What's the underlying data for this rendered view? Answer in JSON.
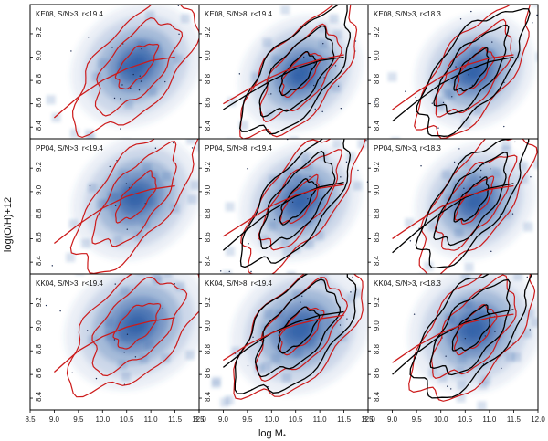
{
  "chart_data": {
    "type": "scatter",
    "layout": "3x3 grid of density plots with contours",
    "xlabel": "log M",
    "xlabel_sub": "*",
    "ylabel": "log(O/H)+12",
    "xlim": [
      8.5,
      12.0
    ],
    "ylim": [
      8.3,
      9.45
    ],
    "xticks": [
      "8.5",
      "9.0",
      "9.5",
      "10.0",
      "10.5",
      "11.0",
      "11.5",
      "12.0"
    ],
    "yticks": [
      "8.4",
      "8.6",
      "8.8",
      "9.0",
      "9.2"
    ],
    "colors": {
      "density": "#2f5fa8",
      "red": "#cc1a1a",
      "black": "#000000",
      "frame": "#000000"
    },
    "panels": [
      {
        "title": "KE08, S/N>3, r<19.4",
        "calibration": "KE08",
        "centroid": [
          10.7,
          8.93
        ],
        "spread": [
          0.55,
          0.19
        ],
        "tilt": 0.3,
        "black_contours": false,
        "red_fit": {
          "x": [
            9.0,
            9.5,
            10.0,
            10.5,
            11.0,
            11.5
          ],
          "y": [
            8.48,
            8.66,
            8.8,
            8.9,
            8.97,
            9.0
          ]
        }
      },
      {
        "title": "KE08, S/N>8, r<19.4",
        "calibration": "KE08",
        "centroid": [
          10.6,
          8.86
        ],
        "spread": [
          0.52,
          0.18
        ],
        "tilt": 0.32,
        "black_contours": true,
        "red_fit": {
          "x": [
            9.0,
            9.5,
            10.0,
            10.5,
            11.0,
            11.5
          ],
          "y": [
            8.6,
            8.72,
            8.83,
            8.92,
            8.98,
            9.02
          ]
        },
        "black_fit": {
          "x": [
            9.0,
            9.5,
            10.0,
            10.5,
            11.0,
            11.5
          ],
          "y": [
            8.55,
            8.68,
            8.8,
            8.9,
            8.97,
            9.0
          ]
        }
      },
      {
        "title": "KE08, S/N>3, r<18.3",
        "calibration": "KE08",
        "centroid": [
          10.7,
          8.88
        ],
        "spread": [
          0.5,
          0.18
        ],
        "tilt": 0.34,
        "black_contours": true,
        "red_fit": {
          "x": [
            9.0,
            9.5,
            10.0,
            10.5,
            11.0,
            11.5
          ],
          "y": [
            8.55,
            8.7,
            8.83,
            8.93,
            8.99,
            9.02
          ]
        },
        "black_fit": {
          "x": [
            9.0,
            9.5,
            10.0,
            10.5,
            11.0,
            11.5
          ],
          "y": [
            8.45,
            8.62,
            8.77,
            8.88,
            8.96,
            9.0
          ]
        }
      },
      {
        "title": "PP04, S/N>3, r<19.4",
        "calibration": "PP04",
        "centroid": [
          10.7,
          8.95
        ],
        "spread": [
          0.55,
          0.19
        ],
        "tilt": 0.35,
        "black_contours": false,
        "red_fit": {
          "x": [
            9.0,
            9.5,
            10.0,
            10.5,
            11.0,
            11.5
          ],
          "y": [
            8.56,
            8.72,
            8.86,
            8.96,
            9.02,
            9.05
          ]
        }
      },
      {
        "title": "PP04, S/N>8, r<19.4",
        "calibration": "PP04",
        "centroid": [
          10.6,
          8.92
        ],
        "spread": [
          0.52,
          0.18
        ],
        "tilt": 0.36,
        "black_contours": true,
        "red_fit": {
          "x": [
            9.0,
            9.5,
            10.0,
            10.5,
            11.0,
            11.5
          ],
          "y": [
            8.62,
            8.75,
            8.88,
            8.97,
            9.03,
            9.06
          ]
        },
        "black_fit": {
          "x": [
            9.0,
            9.5,
            10.0,
            10.5,
            11.0,
            11.5
          ],
          "y": [
            8.5,
            8.68,
            8.84,
            8.96,
            9.04,
            9.08
          ]
        }
      },
      {
        "title": "PP04, S/N>3, r<18.3",
        "calibration": "PP04",
        "centroid": [
          10.7,
          8.92
        ],
        "spread": [
          0.5,
          0.18
        ],
        "tilt": 0.36,
        "black_contours": true,
        "red_fit": {
          "x": [
            9.0,
            9.5,
            10.0,
            10.5,
            11.0,
            11.5
          ],
          "y": [
            8.6,
            8.74,
            8.87,
            8.96,
            9.02,
            9.05
          ]
        },
        "black_fit": {
          "x": [
            9.0,
            9.5,
            10.0,
            10.5,
            11.0,
            11.5
          ],
          "y": [
            8.48,
            8.66,
            8.82,
            8.95,
            9.03,
            9.07
          ]
        }
      },
      {
        "title": "KK04, S/N>3, r<19.4",
        "calibration": "KK04",
        "centroid": [
          10.7,
          9.02
        ],
        "spread": [
          0.6,
          0.2
        ],
        "tilt": 0.25,
        "black_contours": false,
        "red_fit": {
          "x": [
            9.0,
            9.5,
            10.0,
            10.5,
            11.0,
            11.5
          ],
          "y": [
            8.62,
            8.8,
            8.92,
            9.0,
            9.05,
            9.08
          ]
        }
      },
      {
        "title": "KK04, S/N>8, r<19.4",
        "calibration": "KK04",
        "centroid": [
          10.6,
          8.98
        ],
        "spread": [
          0.58,
          0.2
        ],
        "tilt": 0.28,
        "black_contours": true,
        "red_fit": {
          "x": [
            9.0,
            9.5,
            10.0,
            10.5,
            11.0,
            11.5
          ],
          "y": [
            8.72,
            8.85,
            8.95,
            9.02,
            9.07,
            9.1
          ]
        },
        "black_fit": {
          "x": [
            9.0,
            9.5,
            10.0,
            10.5,
            11.0,
            11.5
          ],
          "y": [
            8.66,
            8.82,
            8.95,
            9.04,
            9.1,
            9.13
          ]
        }
      },
      {
        "title": "KK04, S/N>3, r<18.3",
        "calibration": "KK04",
        "centroid": [
          10.7,
          8.98
        ],
        "spread": [
          0.55,
          0.2
        ],
        "tilt": 0.3,
        "black_contours": true,
        "red_fit": {
          "x": [
            9.0,
            9.5,
            10.0,
            10.5,
            11.0,
            11.5
          ],
          "y": [
            8.7,
            8.84,
            8.95,
            9.03,
            9.08,
            9.11
          ]
        },
        "black_fit": {
          "x": [
            9.0,
            9.5,
            10.0,
            10.5,
            11.0,
            11.5
          ],
          "y": [
            8.6,
            8.78,
            8.93,
            9.04,
            9.11,
            9.15
          ]
        }
      }
    ]
  }
}
